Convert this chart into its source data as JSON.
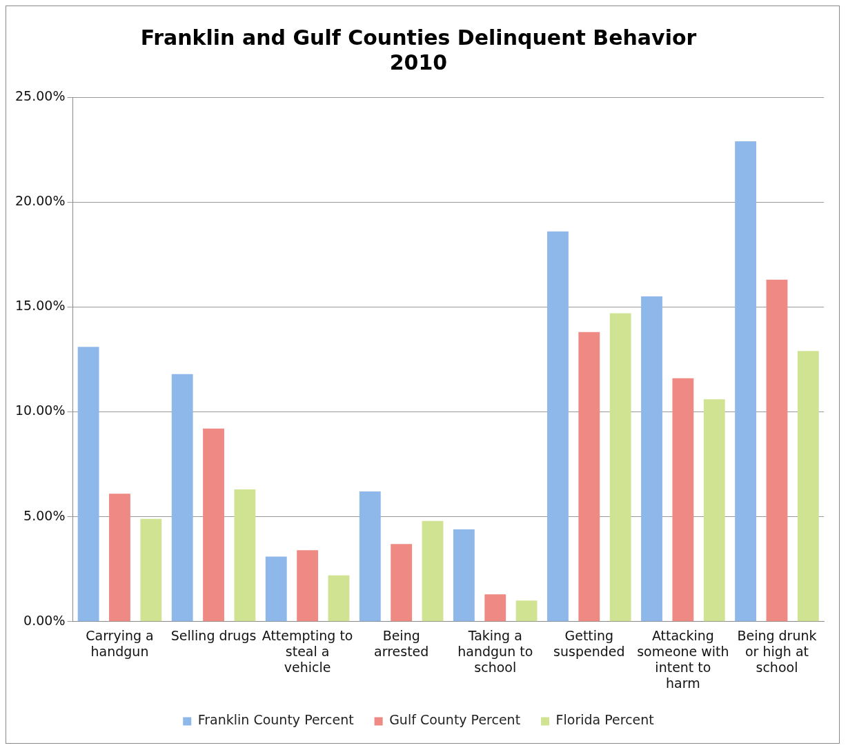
{
  "chart_data": {
    "type": "bar",
    "title": "Franklin and Gulf Counties Delinquent Behavior 2010",
    "categories": [
      "Carrying a handgun",
      "Selling drugs",
      "Attempting to steal a vehicle",
      "Being arrested",
      "Taking a handgun to school",
      "Getting suspended",
      "Attacking someone with intent to harm",
      "Being drunk or high at school"
    ],
    "series": [
      {
        "name": "Franklin County Percent",
        "color": "#8fb8ea",
        "values": [
          13.1,
          11.8,
          3.1,
          6.2,
          4.4,
          18.6,
          15.5,
          22.9
        ]
      },
      {
        "name": "Gulf County Percent",
        "color": "#ee8a83",
        "values": [
          6.1,
          9.2,
          3.4,
          3.7,
          1.3,
          13.8,
          11.6,
          16.3
        ]
      },
      {
        "name": "Florida Percent",
        "color": "#cfe392",
        "values": [
          4.9,
          6.3,
          2.2,
          4.8,
          1.0,
          14.7,
          10.6,
          12.9
        ]
      }
    ],
    "ylim": [
      0,
      25
    ],
    "yticks": [
      {
        "value": 0,
        "label": "0.00%"
      },
      {
        "value": 5,
        "label": "5.00%"
      },
      {
        "value": 10,
        "label": "10.00%"
      },
      {
        "value": 15,
        "label": "15.00%"
      },
      {
        "value": 20,
        "label": "20.00%"
      },
      {
        "value": 25,
        "label": "25.00%"
      }
    ],
    "grid": "y",
    "legend": "bottom"
  }
}
